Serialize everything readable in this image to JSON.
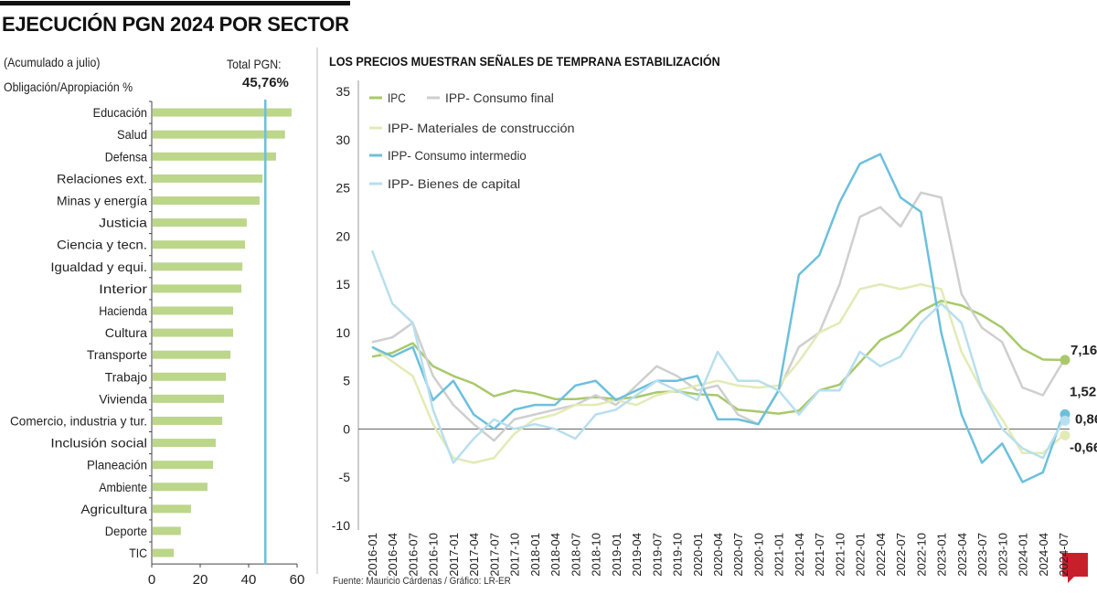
{
  "header": {
    "title": "EJECUCIÓN PGN 2024 POR SECTOR",
    "subtitle1": "(Acumulado a julio)",
    "subtitle2": "Obligación/Apropiación %",
    "total_label": "Total PGN:",
    "total_value": "45,76%"
  },
  "right_title": "LOS PRECIOS MUESTRAN SEÑALES DE TEMPRANA ESTABILIZACIÓN",
  "source": "Fuente: Mauricio Cárdenas / Gráfico: LR-ER",
  "logo_text": "LR",
  "chart_data": [
    {
      "type": "bar",
      "orientation": "horizontal",
      "categories": [
        "Educación",
        "Salud",
        "Defensa",
        "Relaciones ext.",
        "Minas y energía",
        "Justicia",
        "Ciencia y tecn.",
        "Igualdad y equi.",
        "Interior",
        "Hacienda",
        "Cultura",
        "Transporte",
        "Trabajo",
        "Vivienda",
        "Comercio, industria y tur.",
        "Inclusión social",
        "Planeación",
        "Ambiente",
        "Agricultura",
        "Deporte",
        "TIC"
      ],
      "values": [
        57.7,
        55.0,
        51.3,
        45.7,
        44.5,
        39.2,
        38.5,
        37.4,
        37.0,
        33.6,
        33.6,
        32.5,
        30.6,
        29.8,
        29.1,
        26.4,
        25.3,
        23.0,
        16.2,
        12.0,
        9.1
      ],
      "xlim": [
        0,
        60
      ],
      "xticks": [
        0,
        20,
        40,
        60
      ],
      "reference_line": {
        "label": "Total PGN:",
        "value": 45.76
      },
      "bar_color": "#bcd68a",
      "reference_color": "#6cc0dc",
      "grid": false
    },
    {
      "type": "line",
      "x": [
        "2016-01",
        "2016-04",
        "2016-07",
        "2016-10",
        "2017-01",
        "2017-04",
        "2017-07",
        "2017-10",
        "2018-01",
        "2018-04",
        "2018-07",
        "2018-10",
        "2019-01",
        "2019-04",
        "2019-07",
        "2019-10",
        "2020-01",
        "2020-04",
        "2020-07",
        "2020-10",
        "2021-01",
        "2021-04",
        "2021-07",
        "2021-10",
        "2022-01",
        "2022-04",
        "2022-07",
        "2022-10",
        "2023-01",
        "2023-04",
        "2023-07",
        "2023-10",
        "2024-01",
        "2024-04",
        "2024-07"
      ],
      "ylim": [
        -10,
        35
      ],
      "yticks": [
        -10,
        -5,
        0,
        5,
        10,
        15,
        20,
        25,
        30,
        35
      ],
      "grid": false,
      "legend": "top-left",
      "series": [
        {
          "name": "IPC",
          "color": "#a8c96a",
          "end_label": "7,16",
          "values": [
            7.5,
            7.9,
            8.9,
            6.5,
            5.5,
            4.7,
            3.4,
            4.0,
            3.7,
            3.1,
            3.1,
            3.3,
            3.1,
            3.3,
            3.8,
            3.9,
            3.6,
            3.5,
            2.0,
            1.8,
            1.6,
            1.9,
            4.0,
            4.6,
            6.9,
            9.2,
            10.2,
            12.2,
            13.3,
            12.8,
            11.8,
            10.5,
            8.3,
            7.2,
            7.16
          ]
        },
        {
          "name": "IPP- Consumo final",
          "color": "#cfcfcf",
          "end_label": "",
          "values": [
            9,
            9.5,
            11,
            5.5,
            2.5,
            0.5,
            -1.2,
            1.0,
            1.5,
            2,
            2.5,
            3.5,
            2.5,
            4.5,
            6.5,
            5.5,
            4.0,
            4.5,
            1.5,
            0.5,
            4,
            8.5,
            10,
            15,
            22,
            23,
            21,
            24.5,
            24,
            14,
            10.5,
            9,
            4.3,
            3.5,
            7
          ]
        },
        {
          "name": "IPP- Materiales de construcción",
          "color": "#e2ebb5",
          "end_label": "-0,66",
          "values": [
            8.5,
            7,
            5.5,
            0.5,
            -3,
            -3.5,
            -3,
            -0.5,
            1.0,
            1.5,
            2.5,
            2.5,
            3,
            2.5,
            3.5,
            4,
            4.5,
            5,
            4.5,
            4.3,
            4.5,
            7,
            10,
            11,
            14.5,
            15,
            14.5,
            15,
            14.5,
            8,
            4,
            1,
            -2.5,
            -2.5,
            -0.66
          ]
        },
        {
          "name": "IPP- Consumo intermedio",
          "color": "#6cc0dc",
          "end_label": "1,52",
          "values": [
            8.5,
            7.5,
            8.5,
            3,
            5,
            1.5,
            0,
            2,
            2.5,
            2.5,
            4.5,
            5,
            3,
            4,
            5,
            5,
            5.5,
            1,
            1,
            0.5,
            4,
            16,
            18,
            23.5,
            27.5,
            28.5,
            24,
            22.5,
            10,
            1.5,
            -3.5,
            -1.5,
            -5.5,
            -4.5,
            1.52
          ]
        },
        {
          "name": "IPP- Bienes de capital",
          "color": "#b8dfee",
          "end_label": "0,86",
          "values": [
            18.5,
            13,
            11,
            2,
            -3.5,
            -1,
            1,
            0,
            0.5,
            0,
            -1,
            1.5,
            2,
            3.5,
            5,
            4,
            3,
            8,
            5,
            5,
            4,
            1.5,
            4,
            4,
            8,
            6.5,
            7.5,
            11,
            13,
            11,
            4,
            0,
            -2,
            -3,
            0.86
          ]
        }
      ]
    }
  ]
}
